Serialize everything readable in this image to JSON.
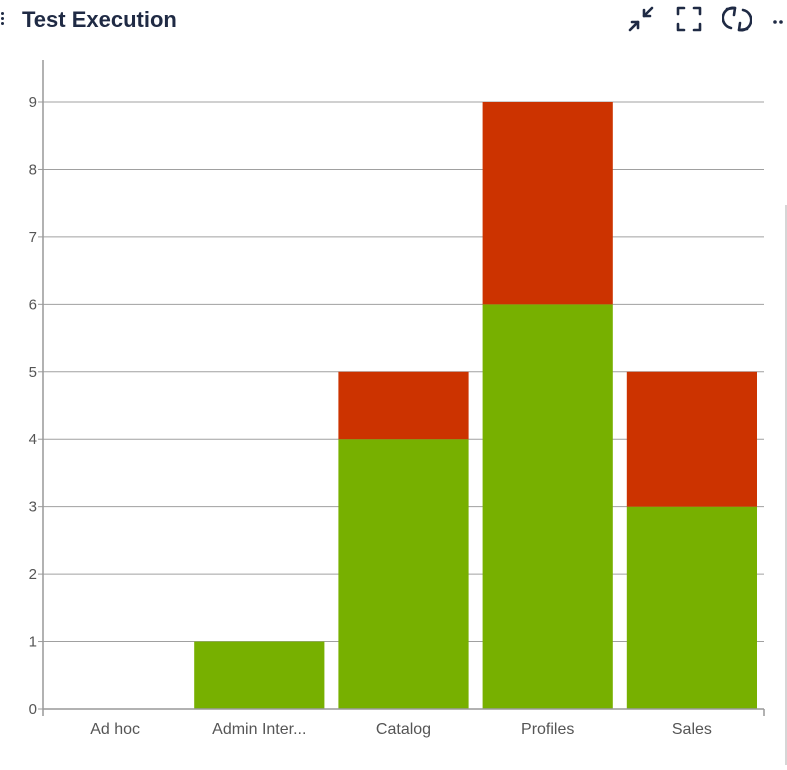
{
  "header": {
    "title": "Test Execution",
    "icons": [
      "drag-handle-icon",
      "collapse-icon",
      "fullscreen-icon",
      "refresh-icon",
      "more-icon"
    ]
  },
  "colors": {
    "title": "#1f2a44",
    "passed": "#77b000",
    "failed": "#cc3300",
    "grid": "#a0a0a0",
    "axis": "#999999",
    "tick_label": "#555555"
  },
  "chart_data": {
    "type": "bar",
    "stacked": true,
    "categories": [
      "Ad hoc",
      "Admin Inter...",
      "Catalog",
      "Profiles",
      "Sales"
    ],
    "series": [
      {
        "color": "#77b000",
        "values": [
          0,
          1,
          4,
          6,
          3
        ]
      },
      {
        "color": "#cc3300",
        "values": [
          0,
          0,
          1,
          3,
          2
        ]
      }
    ],
    "ylim": [
      0,
      9
    ],
    "yticks": [
      0,
      1,
      2,
      3,
      4,
      5,
      6,
      7,
      8,
      9
    ],
    "grid": true,
    "legend": "none"
  }
}
